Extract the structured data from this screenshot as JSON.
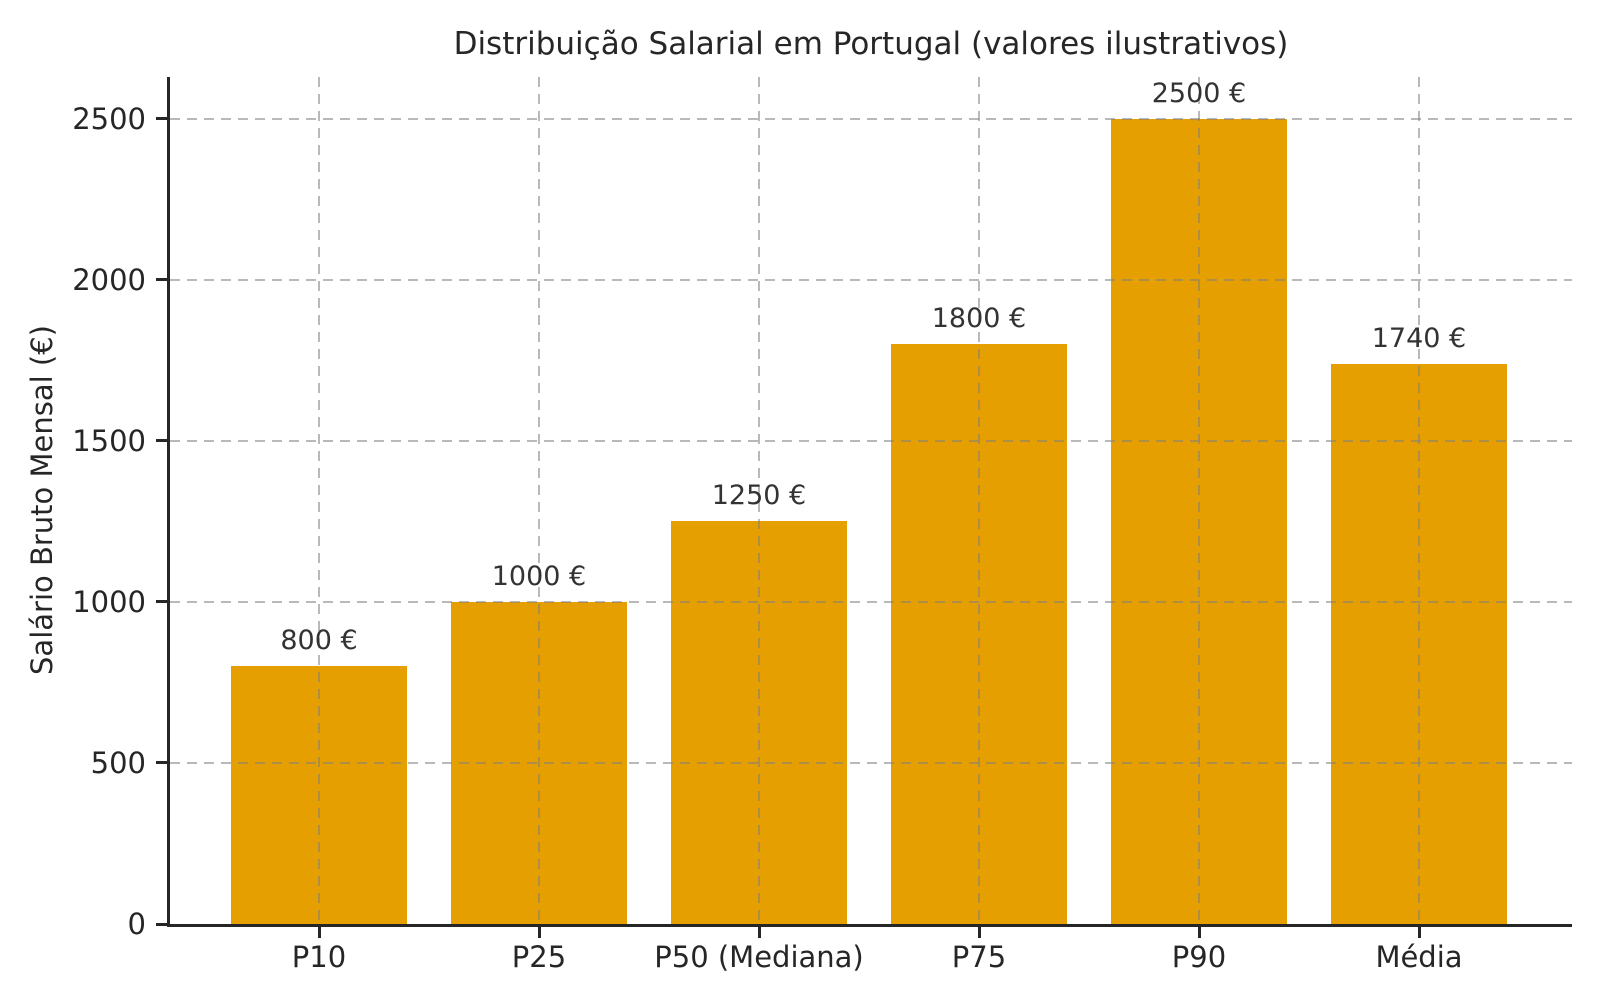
{
  "chart_data": {
    "type": "bar",
    "title": "Distribuição Salarial em Portugal (valores ilustrativos)",
    "xlabel": "",
    "ylabel": "Salário Bruto Mensal (€)",
    "categories": [
      "P10",
      "P25",
      "P50 (Mediana)",
      "P75",
      "P90",
      "Média"
    ],
    "values": [
      800,
      1000,
      1250,
      1800,
      2500,
      1740
    ],
    "bar_labels": [
      "800 €",
      "1000 €",
      "1250 €",
      "1800 €",
      "2500 €",
      "1740 €"
    ],
    "y_ticks": [
      0,
      500,
      1000,
      1500,
      2000,
      2500
    ],
    "ylim": [
      0,
      2630
    ],
    "grid": "dashed gridlines on both axes, drawn over bars",
    "legend": "none",
    "colors": {
      "bar": "#E69F00",
      "title_text": "#262626",
      "tick_text": "#262626",
      "value_label_text": "#333333",
      "grid": "rgba(128,128,128,0.55)",
      "spine": "#262626",
      "background": "#ffffff"
    }
  }
}
